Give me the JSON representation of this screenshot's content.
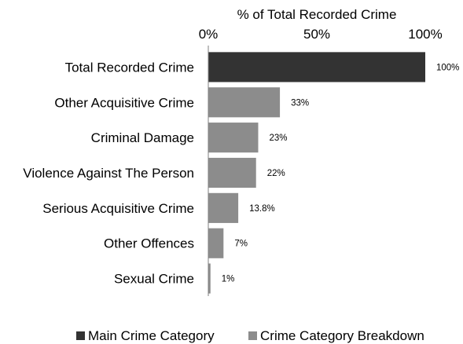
{
  "chart_data": {
    "type": "bar",
    "orientation": "horizontal",
    "title": "% of Total Recorded Crime",
    "categories": [
      "Total Recorded Crime",
      "Other Acquisitive Crime",
      "Criminal Damage",
      "Violence Against The Person",
      "Serious Acquisitive Crime",
      "Other Offences",
      "Sexual Crime"
    ],
    "series": [
      {
        "name": "Main Crime Category",
        "color": "#333333",
        "values": [
          100,
          null,
          null,
          null,
          null,
          null,
          null
        ]
      },
      {
        "name": "Crime Category Breakdown",
        "color": "#8c8c8c",
        "values": [
          null,
          33,
          23,
          22,
          13.8,
          7,
          1
        ]
      }
    ],
    "value_labels": [
      "100%",
      "33%",
      "23%",
      "22%",
      "13.8%",
      "7%",
      "1%"
    ],
    "xlim": [
      0,
      100
    ],
    "x_ticks": [
      0,
      50,
      100
    ],
    "x_tick_labels": [
      "0%",
      "50%",
      "100%"
    ],
    "x_axis_position": "top",
    "grid": false,
    "legend": "bottom"
  }
}
